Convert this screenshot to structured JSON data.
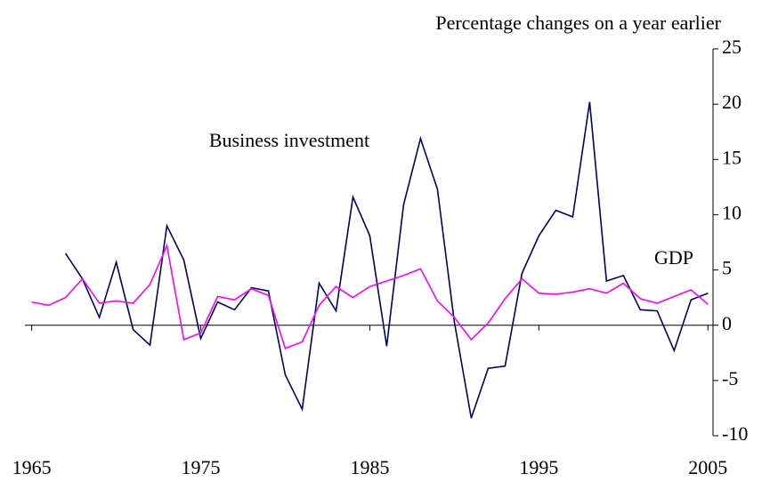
{
  "chart_data": {
    "type": "line",
    "y_axis_title": "Percentage changes on a year earlier",
    "x": [
      1965,
      1966,
      1967,
      1968,
      1969,
      1970,
      1971,
      1972,
      1973,
      1974,
      1975,
      1976,
      1977,
      1978,
      1979,
      1980,
      1981,
      1982,
      1983,
      1984,
      1985,
      1986,
      1987,
      1988,
      1989,
      1990,
      1991,
      1992,
      1993,
      1994,
      1995,
      1996,
      1997,
      1998,
      1999,
      2000,
      2001,
      2002,
      2003,
      2004,
      2005
    ],
    "series": [
      {
        "name": "Business investment",
        "color": "#000066",
        "values": [
          null,
          null,
          6.5,
          4.2,
          0.7,
          5.7,
          -0.4,
          -1.8,
          9.0,
          5.9,
          -1.2,
          2.1,
          1.4,
          3.4,
          3.1,
          -4.5,
          -7.6,
          3.8,
          1.3,
          11.6,
          8.1,
          -1.9,
          10.9,
          16.9,
          12.3,
          0.3,
          -8.4,
          -3.9,
          -3.7,
          4.7,
          8.1,
          10.4,
          9.8,
          20.2,
          4.0,
          4.5,
          1.4,
          1.3,
          -2.3,
          2.3,
          2.9
        ]
      },
      {
        "name": "GDP",
        "color": "#ff00ff",
        "values": [
          2.1,
          1.8,
          2.5,
          4.2,
          2.0,
          2.2,
          2.0,
          3.7,
          7.2,
          -1.3,
          -0.7,
          2.6,
          2.3,
          3.3,
          2.7,
          -2.1,
          -1.5,
          1.8,
          3.5,
          2.5,
          3.5,
          4.0,
          4.5,
          5.1,
          2.2,
          0.7,
          -1.3,
          0.2,
          2.4,
          4.2,
          2.9,
          2.8,
          3.0,
          3.3,
          2.9,
          3.8,
          2.4,
          2.0,
          2.6,
          3.2,
          1.9
        ]
      }
    ],
    "xlim": [
      1964.6,
      2005.3
    ],
    "xticks": [
      1965,
      1975,
      1985,
      1995,
      2005
    ],
    "ylim": [
      -10,
      25
    ],
    "yticks": [
      -10,
      -5,
      0,
      5,
      10,
      15,
      20,
      25
    ],
    "y_axis_side": "right"
  }
}
